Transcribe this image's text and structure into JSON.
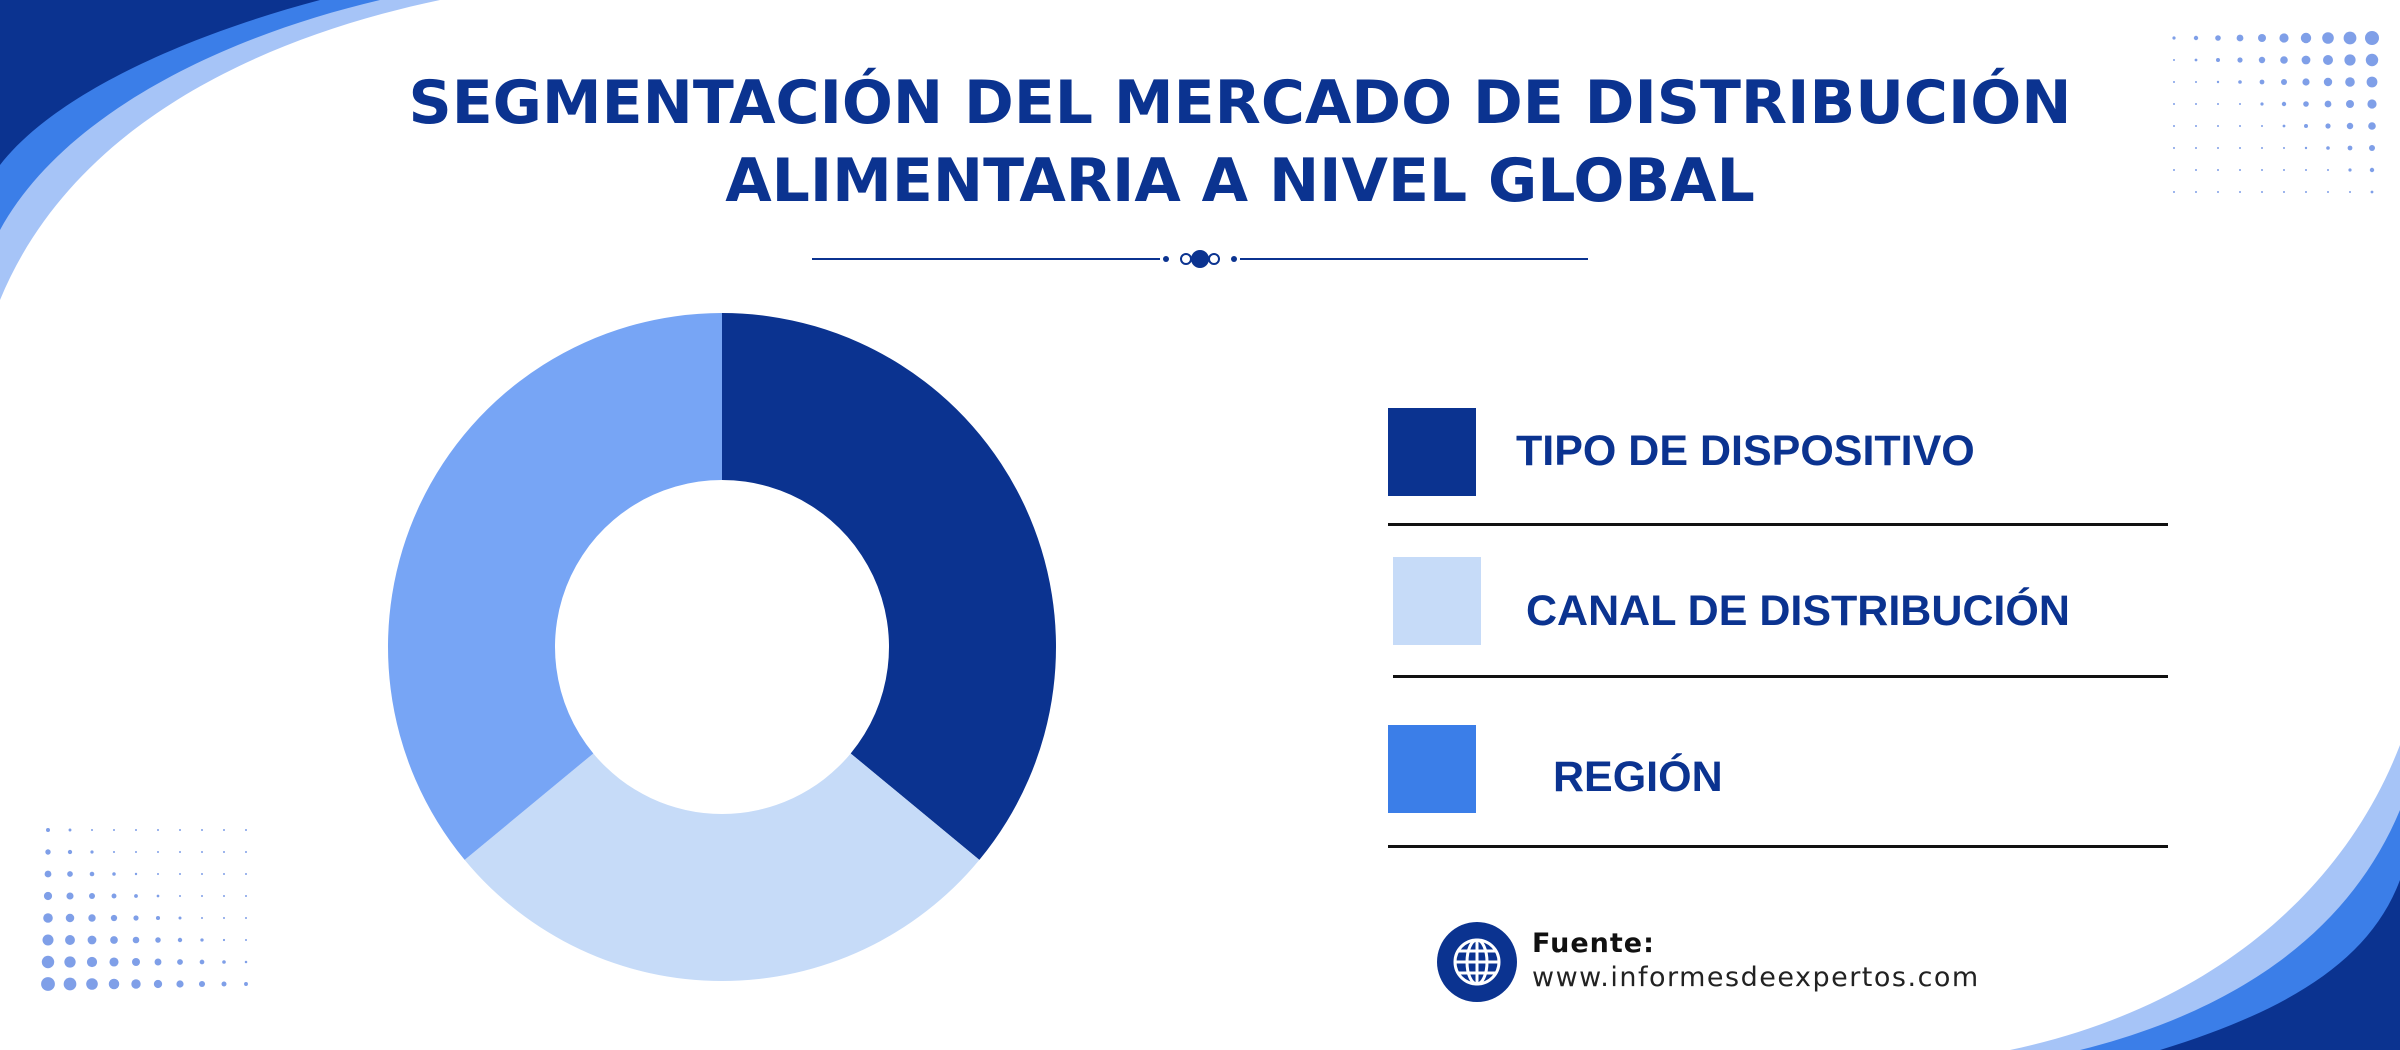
{
  "title": {
    "line1": "SEGMENTACIÓN DEL MERCADO DE DISTRIBUCIÓN",
    "line2": "ALIMENTARIA A NIVEL GLOBAL"
  },
  "chart_data": {
    "type": "pie",
    "style": "donut",
    "categories": [
      "TIPO DE DISPOSITIVO",
      "CANAL DE DISTRIBUCIÓN",
      "REGIÓN"
    ],
    "values": [
      36,
      28,
      36
    ],
    "colors": [
      "#0b3390",
      "#c6dbf8",
      "#77a5f5"
    ],
    "legend": "right"
  },
  "legend": {
    "items": [
      {
        "label": "TIPO DE DISPOSITIVO",
        "color": "#0b3390"
      },
      {
        "label": "CANAL DE DISTRIBUCIÓN",
        "color": "#c6dbf8"
      },
      {
        "label": "REGIÓN",
        "color": "#3b7ee8"
      }
    ]
  },
  "source": {
    "label": "Fuente:",
    "url": "www.informesdeexpertos.com",
    "icon": "globe-icon"
  },
  "colors": {
    "accent": "#0b3390",
    "light_blue": "#a6c4f7",
    "mid_blue": "#3b7ee8"
  }
}
